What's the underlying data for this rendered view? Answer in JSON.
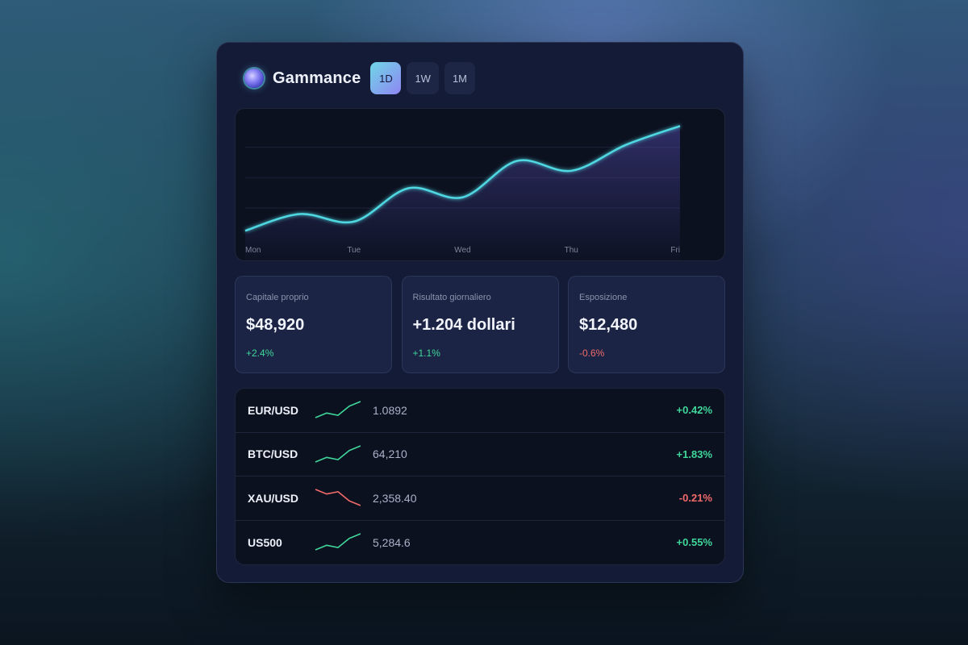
{
  "app": {
    "brand": "Gammance",
    "brand_icon": "orb-logo-icon"
  },
  "timeframes": [
    {
      "label": "1D",
      "active": true
    },
    {
      "label": "1W",
      "active": false
    },
    {
      "label": "1M",
      "active": false
    }
  ],
  "chart_data": {
    "type": "area",
    "title": "",
    "categories": [
      "Mon",
      "Tue",
      "Wed",
      "Thu",
      "Fri"
    ],
    "x": [
      0,
      0.5,
      1,
      1.5,
      2,
      2.5,
      3,
      3.5,
      4
    ],
    "values": [
      20,
      42,
      32,
      76,
      64,
      112,
      99,
      133,
      158
    ],
    "ylim": [
      0,
      170
    ],
    "grid": true,
    "legend": "none",
    "colors": {
      "line": "#4fd8e2",
      "fill": "#6a5ac8"
    }
  },
  "stats": [
    {
      "label": "Capitale proprio",
      "value": "$48,920",
      "delta": "+2.4%",
      "direction": "up"
    },
    {
      "label": "Risultato giornaliero",
      "value": "+1.204 dollari",
      "delta": "+1.1%",
      "direction": "up"
    },
    {
      "label": "Esposizione",
      "value": "$12,480",
      "delta": "-0.6%",
      "direction": "down"
    }
  ],
  "tickers": [
    {
      "symbol": "EUR/USD",
      "price": "1.0892",
      "change": "+0.42%",
      "direction": "up",
      "spark": [
        3,
        5,
        4,
        8,
        10
      ]
    },
    {
      "symbol": "BTC/USD",
      "price": "64,210",
      "change": "+1.83%",
      "direction": "up",
      "spark": [
        3,
        5,
        4,
        8,
        10
      ]
    },
    {
      "symbol": "XAU/USD",
      "price": "2,358.40",
      "change": "-0.21%",
      "direction": "down",
      "spark": [
        10,
        8,
        9,
        5,
        3
      ]
    },
    {
      "symbol": "US500",
      "price": "5,284.6",
      "change": "+0.55%",
      "direction": "up",
      "spark": [
        3,
        5,
        4,
        8,
        10
      ]
    }
  ],
  "colors": {
    "positive": "#3fd79a",
    "negative": "#f26a6a",
    "accent": "#4fd8e2"
  }
}
